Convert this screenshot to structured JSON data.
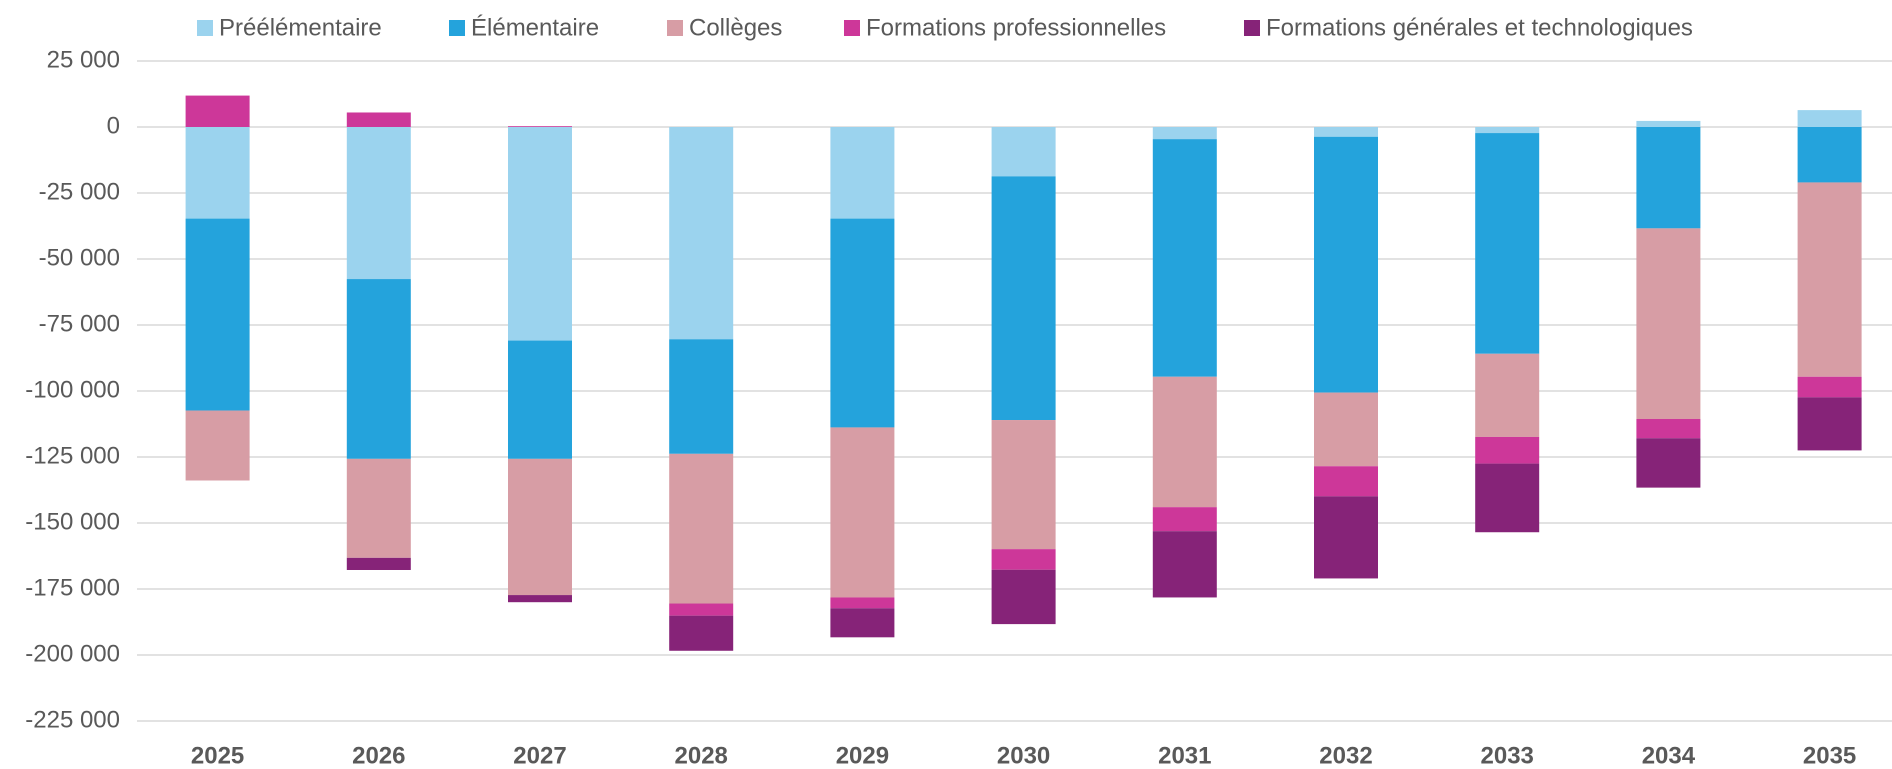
{
  "chart_data": {
    "type": "stacked-bar",
    "categories": [
      "2025",
      "2026",
      "2027",
      "2028",
      "2029",
      "2030",
      "2031",
      "2032",
      "2033",
      "2034",
      "2035"
    ],
    "series": [
      {
        "name": "Préélémentaire",
        "color": "#9BD3EE",
        "values": [
          -34700,
          -57600,
          -80900,
          -80400,
          -34700,
          -18700,
          -4600,
          -3700,
          -2300,
          2300,
          6400
        ]
      },
      {
        "name": "Élémentaire",
        "color": "#24A3DC",
        "values": [
          -72700,
          -68100,
          -44800,
          -43400,
          -79100,
          -92300,
          -90000,
          -96900,
          -83600,
          -38400,
          -21000
        ]
      },
      {
        "name": "Collèges",
        "color": "#D79DA5",
        "values": [
          -26500,
          -37500,
          -51600,
          -56700,
          -64400,
          -48900,
          -49400,
          -27900,
          -31500,
          -72200,
          -73600
        ]
      },
      {
        "name": "Formations professionnelles",
        "color": "#CD3799",
        "values": [
          11900,
          5500,
          300,
          -4600,
          -4100,
          -7800,
          -9100,
          -11400,
          -10100,
          -7300,
          -7800
        ]
      },
      {
        "name": "Formations générales et technologiques",
        "color": "#862378",
        "values": [
          0,
          -4600,
          -2700,
          -13300,
          -11000,
          -20600,
          -25100,
          -31100,
          -26000,
          -18700,
          -20100
        ]
      }
    ],
    "ylim": [
      -225000,
      25000
    ],
    "yticks": [
      {
        "value": 25000,
        "label": "25 000"
      },
      0,
      {
        "value": -25000,
        "label": "-25 000"
      },
      {
        "value": -50000,
        "label": "-50 000"
      },
      {
        "value": -75000,
        "label": "-75 000"
      },
      {
        "value": -100000,
        "label": "-100 000"
      },
      {
        "value": -125000,
        "label": "-125 000"
      },
      {
        "value": -150000,
        "label": "-150 000"
      },
      {
        "value": -175000,
        "label": "-175 000"
      },
      {
        "value": -200000,
        "label": "-200 000"
      },
      {
        "value": -225000,
        "label": "-225 000"
      }
    ],
    "grid": true,
    "legend": "top"
  }
}
